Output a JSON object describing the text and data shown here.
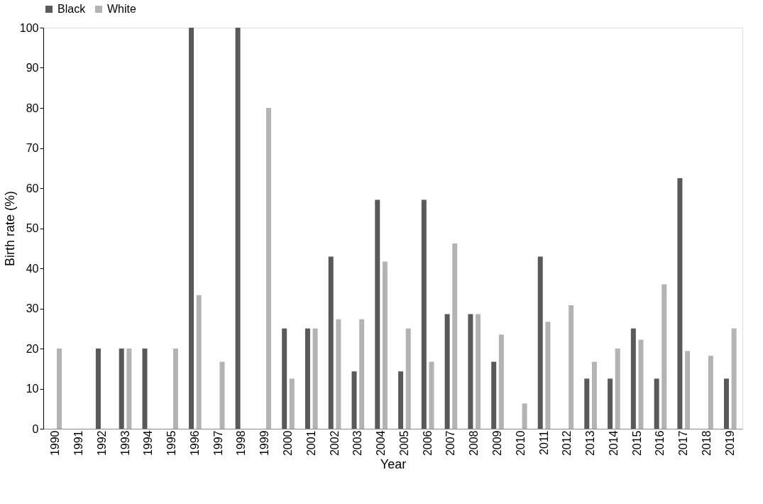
{
  "chart_data": {
    "type": "bar",
    "xlabel": "Year",
    "ylabel": "Birth rate (%)",
    "categories": [
      "1990",
      "1991",
      "1992",
      "1993",
      "1994",
      "1995",
      "1996",
      "1997",
      "1998",
      "1999",
      "2000",
      "2001",
      "2002",
      "2003",
      "2004",
      "2005",
      "2006",
      "2007",
      "2008",
      "2009",
      "2010",
      "2011",
      "2012",
      "2013",
      "2014",
      "2015",
      "2016",
      "2017",
      "2018",
      "2019"
    ],
    "series": [
      {
        "name": "Black",
        "color": "#595959",
        "values": [
          null,
          null,
          20,
          20,
          20,
          null,
          100,
          null,
          100,
          null,
          25,
          25,
          42.9,
          14.3,
          57.1,
          14.3,
          57.1,
          28.6,
          28.6,
          16.7,
          null,
          42.9,
          null,
          12.5,
          12.5,
          25,
          12.5,
          62.5,
          null,
          12.5
        ]
      },
      {
        "name": "White",
        "color": "#b3b3b3",
        "values": [
          20,
          null,
          null,
          20,
          null,
          20,
          33.3,
          16.7,
          null,
          80,
          12.5,
          25,
          27.3,
          27.3,
          41.7,
          25,
          16.7,
          46.2,
          28.6,
          23.5,
          6.3,
          26.7,
          30.8,
          16.7,
          20,
          22.2,
          36,
          19.4,
          18.2,
          25
        ]
      }
    ],
    "ylim": [
      0,
      100
    ],
    "yticks": [
      0,
      10,
      20,
      30,
      40,
      50,
      60,
      70,
      80,
      90,
      100
    ],
    "grid": false,
    "legend": "top"
  }
}
